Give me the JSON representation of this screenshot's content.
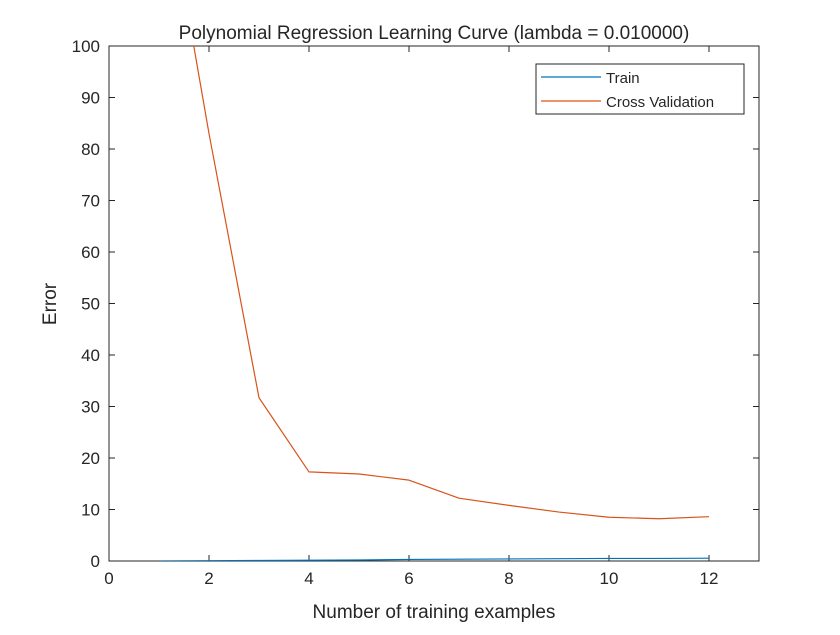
{
  "chart_data": {
    "type": "line",
    "title": "Polynomial Regression Learning Curve (lambda = 0.010000)",
    "xlabel": "Number of training examples",
    "ylabel": "Error",
    "xlim": [
      0,
      13
    ],
    "ylim": [
      0,
      100
    ],
    "xticks": [
      0,
      2,
      4,
      6,
      8,
      10,
      12
    ],
    "yticks": [
      0,
      10,
      20,
      30,
      40,
      50,
      60,
      70,
      80,
      90,
      100
    ],
    "grid": false,
    "legend_position": "top-right",
    "series": [
      {
        "name": "Train",
        "color": "#0072BD",
        "x": [
          1,
          2,
          3,
          4,
          5,
          6,
          7,
          8,
          9,
          10,
          11,
          12
        ],
        "y": [
          0.0,
          0.05,
          0.1,
          0.15,
          0.2,
          0.3,
          0.35,
          0.4,
          0.45,
          0.5,
          0.5,
          0.55
        ]
      },
      {
        "name": "Cross Validation",
        "color": "#D95319",
        "x": [
          1,
          2,
          3,
          4,
          5,
          6,
          7,
          8,
          9,
          10,
          11,
          12
        ],
        "y": [
          138.8,
          83.0,
          31.7,
          17.3,
          16.9,
          15.7,
          12.2,
          10.8,
          9.5,
          8.5,
          8.2,
          8.6
        ]
      }
    ]
  }
}
